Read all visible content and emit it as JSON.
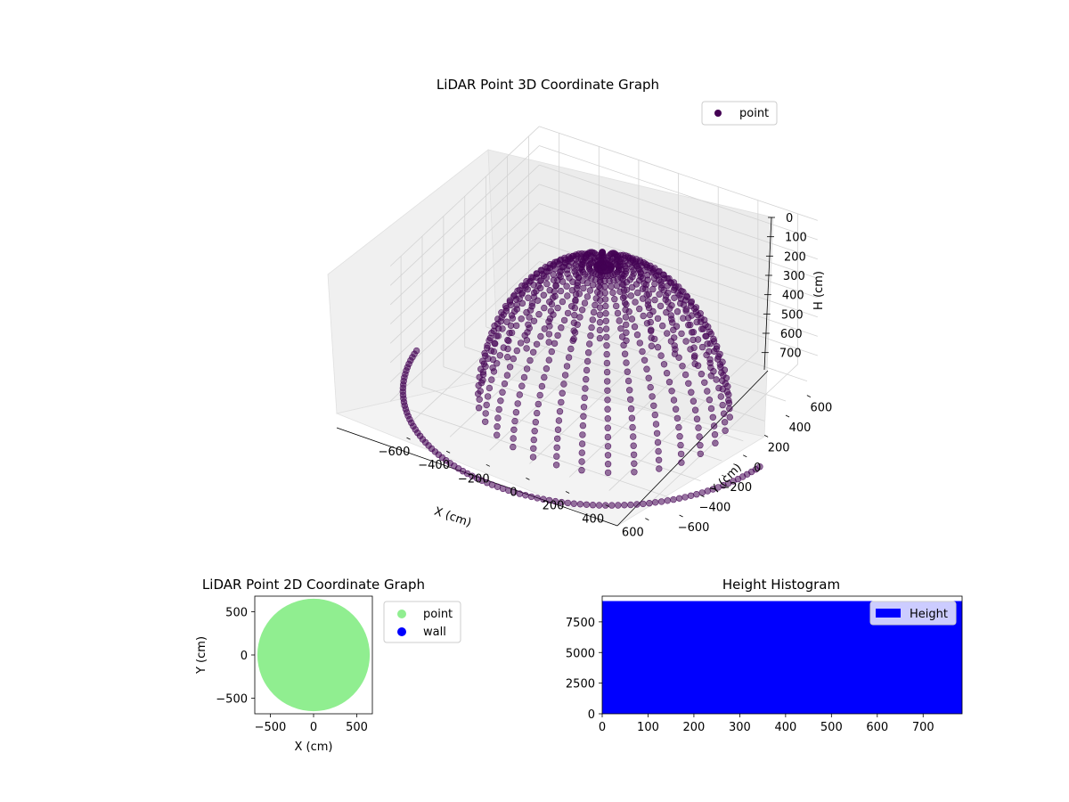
{
  "chart_data": [
    {
      "type": "scatter",
      "projection": "3d",
      "title": "LiDAR Point 3D Coordinate Graph",
      "xlabel": "X (cm)",
      "ylabel": "Y (cm)",
      "zlabel": "H (cm)",
      "xlim": [
        -700,
        700
      ],
      "ylim": [
        -700,
        700
      ],
      "zlim": [
        780,
        0
      ],
      "z_inverted": true,
      "x_ticks": [
        "−600",
        "−400",
        "−200",
        "0",
        "200",
        "400",
        "600"
      ],
      "y_ticks": [
        "−600",
        "−400",
        "−200",
        "0",
        "200",
        "400",
        "600"
      ],
      "z_ticks": [
        "0",
        "100",
        "200",
        "300",
        "400",
        "500",
        "600",
        "700"
      ],
      "grid": true,
      "legend": {
        "position": "top-right",
        "entries": [
          "point"
        ]
      },
      "series": [
        {
          "name": "point",
          "color": "#440154",
          "description_values": {
            "dome_radius": 560,
            "max_height": 780,
            "arcs": 30
          }
        }
      ]
    },
    {
      "type": "scatter",
      "title": "LiDAR Point 2D Coordinate Graph",
      "xlabel": "X (cm)",
      "ylabel": "Y (cm)",
      "xlim": [
        -680,
        680
      ],
      "ylim": [
        -680,
        680
      ],
      "x_ticks": [
        "−500",
        "0",
        "500"
      ],
      "y_ticks": [
        "−500",
        "0",
        "500"
      ],
      "legend": {
        "position": "outside-right",
        "entries": [
          "point",
          "wall"
        ]
      },
      "series": [
        {
          "name": "point",
          "color": "#90ee90",
          "shape": "filled disc",
          "radius": 650
        },
        {
          "name": "wall",
          "color": "#0000ff",
          "points": []
        }
      ]
    },
    {
      "type": "bar",
      "subtype": "histogram",
      "title": "Height Histogram",
      "xlim": [
        0,
        785
      ],
      "ylim": [
        0,
        9600
      ],
      "x_ticks": [
        "0",
        "100",
        "200",
        "300",
        "400",
        "500",
        "600",
        "700"
      ],
      "y_ticks": [
        "0",
        "2500",
        "5000",
        "7500"
      ],
      "legend": {
        "position": "top-right",
        "entries": [
          "Height"
        ]
      },
      "series": [
        {
          "name": "Height",
          "color": "#0000ff",
          "bin_range": [
            0,
            785
          ],
          "count": 9200
        }
      ]
    }
  ]
}
